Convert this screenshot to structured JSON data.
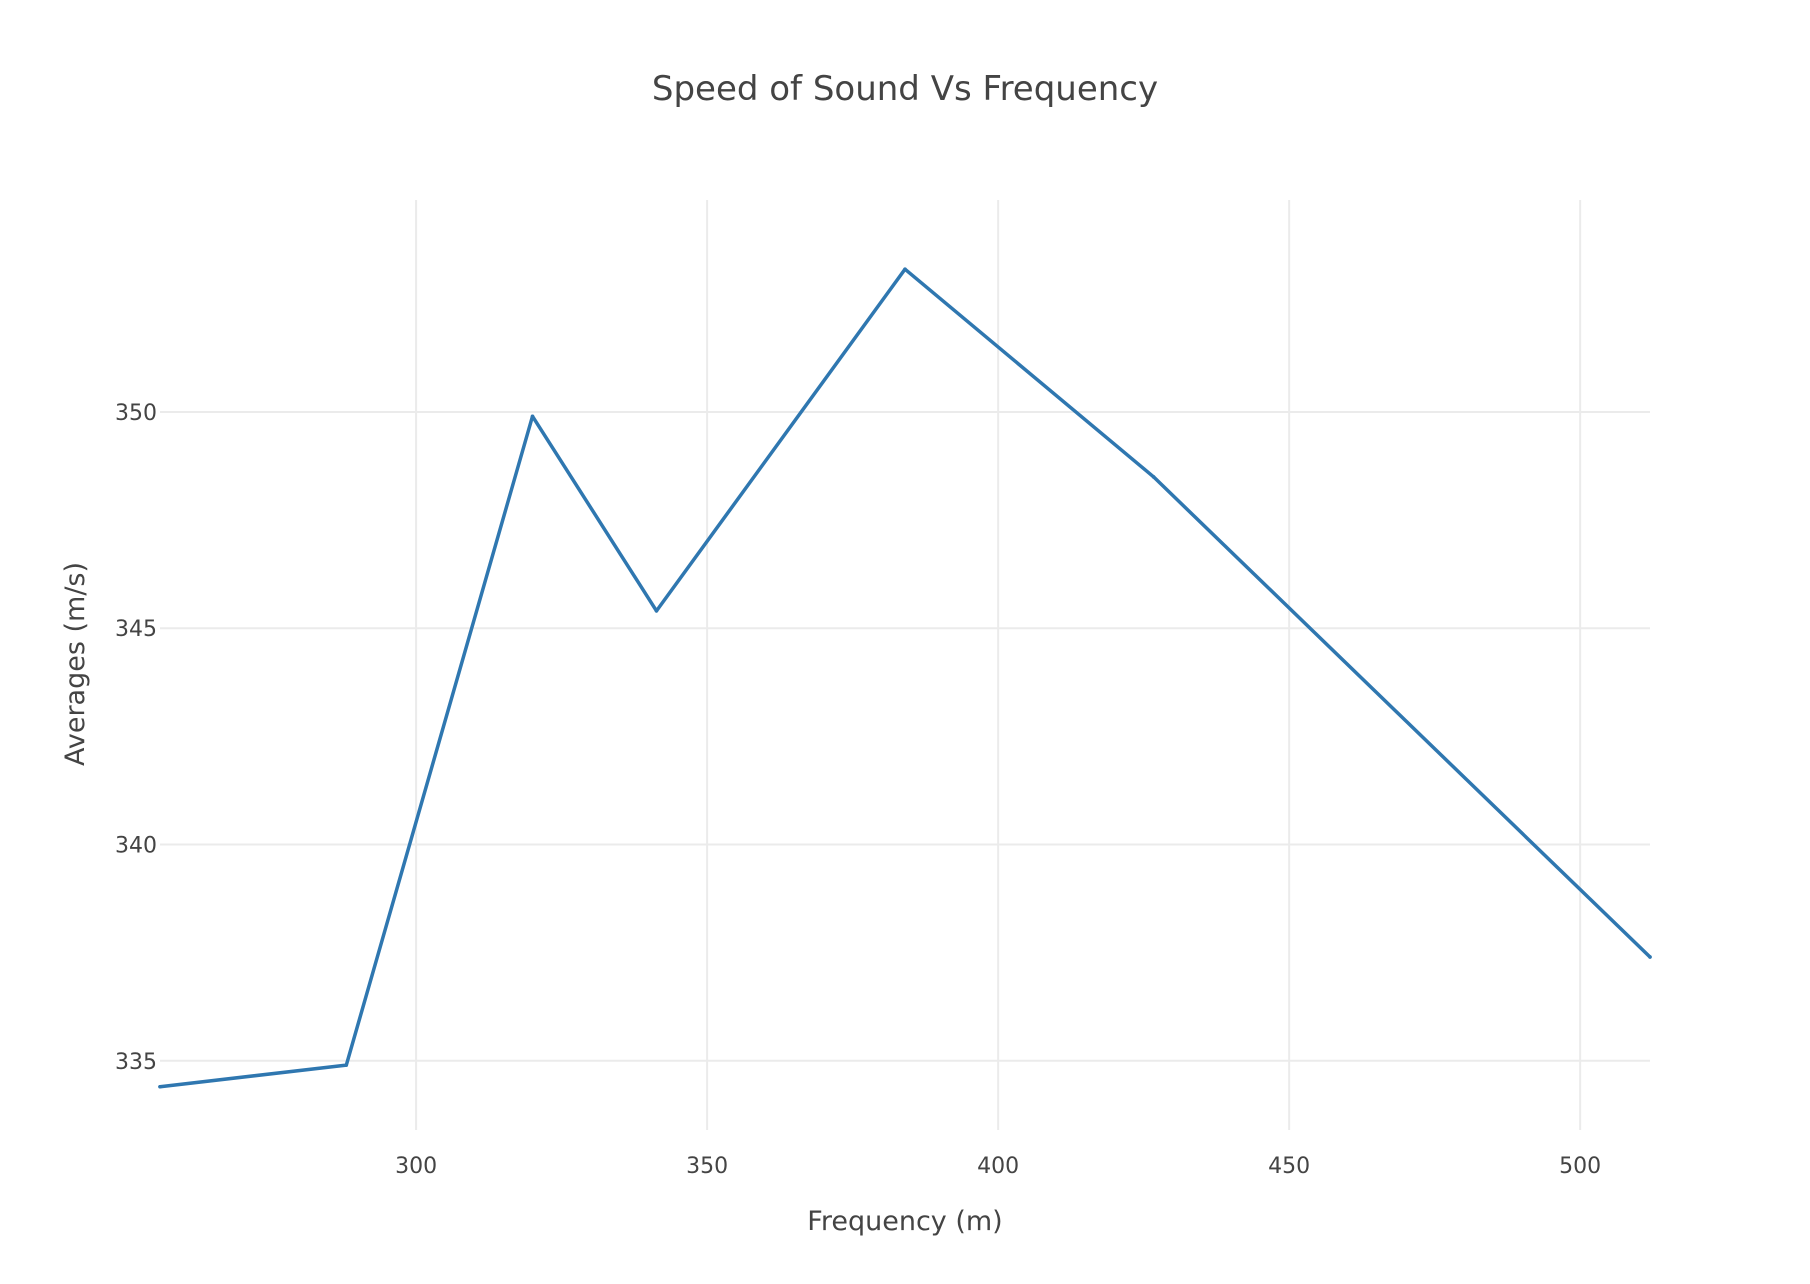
{
  "chart_data": {
    "type": "line",
    "title": "Speed of Sound Vs Frequency",
    "xlabel": "Frequency (m)",
    "ylabel": "Averages (m/s)",
    "xlim": [
      256,
      512
    ],
    "ylim": [
      333.4,
      354.9
    ],
    "x_ticks": [
      300,
      350,
      400,
      450,
      500
    ],
    "y_ticks": [
      335,
      340,
      345,
      350
    ],
    "grid": true,
    "legend": "none",
    "series": [
      {
        "color": "#2f77b0",
        "x": [
          256,
          288,
          320,
          341.3,
          384,
          426.7,
          512
        ],
        "y": [
          334.4,
          334.9,
          349.9,
          345.4,
          353.3,
          348.5,
          337.4
        ]
      }
    ]
  }
}
